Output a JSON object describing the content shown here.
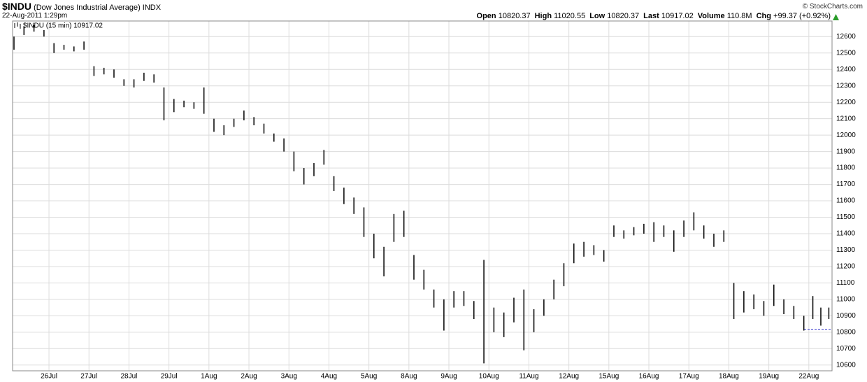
{
  "header": {
    "symbol": "$INDU",
    "name": "(Dow Jones Industrial Average) INDX",
    "date": "22-Aug-2011 1:29pm",
    "stats": [
      {
        "label": "Open",
        "value": "10820.37"
      },
      {
        "label": "High",
        "value": "11020.55"
      },
      {
        "label": "Low",
        "value": "10820.37"
      },
      {
        "label": "Last",
        "value": "10917.02"
      },
      {
        "label": "Volume",
        "value": "110.8M"
      },
      {
        "label": "Chg",
        "value": "+99.37 (+0.92%)"
      }
    ],
    "copyright": "© StockCharts.com"
  },
  "chart_data": {
    "type": "ohlc",
    "grid": true,
    "xlim": [
      0.09,
      20.58
    ],
    "ylim": [
      10565,
      12695
    ],
    "xticks": [
      {
        "value": 1,
        "label": "26Jul"
      },
      {
        "value": 2,
        "label": "27Jul"
      },
      {
        "value": 3,
        "label": "28Jul"
      },
      {
        "value": 4,
        "label": "29Jul"
      },
      {
        "value": 5,
        "label": "1Aug"
      },
      {
        "value": 6,
        "label": "2Aug"
      },
      {
        "value": 7,
        "label": "3Aug"
      },
      {
        "value": 8,
        "label": "4Aug"
      },
      {
        "value": 9,
        "label": "5Aug"
      },
      {
        "value": 10,
        "label": "8Aug"
      },
      {
        "value": 11,
        "label": "9Aug"
      },
      {
        "value": 12,
        "label": "10Aug"
      },
      {
        "value": 13,
        "label": "11Aug"
      },
      {
        "value": 14,
        "label": "12Aug"
      },
      {
        "value": 15,
        "label": "15Aug"
      },
      {
        "value": 16,
        "label": "16Aug"
      },
      {
        "value": 17,
        "label": "17Aug"
      },
      {
        "value": 18,
        "label": "18Aug"
      },
      {
        "value": 19,
        "label": "19Aug"
      },
      {
        "value": 20,
        "label": "22Aug"
      }
    ],
    "yticks": [
      10600,
      10700,
      10800,
      10900,
      11000,
      11100,
      11200,
      11300,
      11400,
      11500,
      11600,
      11700,
      11800,
      11900,
      12000,
      12100,
      12200,
      12300,
      12400,
      12500,
      12600
    ],
    "reference_line": {
      "value": 10818,
      "color": "#3333cc"
    },
    "series": [
      {
        "name": "$INDU (15 min) 10917.02",
        "color": "#000000",
        "x": [
          0.125,
          0.375,
          0.625,
          0.875,
          1.125,
          1.375,
          1.625,
          1.875,
          2.125,
          2.375,
          2.625,
          2.875,
          3.125,
          3.375,
          3.625,
          3.875,
          4.125,
          4.375,
          4.625,
          4.875,
          5.125,
          5.375,
          5.625,
          5.875,
          6.125,
          6.375,
          6.625,
          6.875,
          7.125,
          7.375,
          7.625,
          7.875,
          8.125,
          8.375,
          8.625,
          8.875,
          9.125,
          9.375,
          9.625,
          9.875,
          10.125,
          10.375,
          10.625,
          10.875,
          11.125,
          11.375,
          11.625,
          11.875,
          12.125,
          12.375,
          12.625,
          12.875,
          13.125,
          13.375,
          13.625,
          13.875,
          14.125,
          14.375,
          14.625,
          14.875,
          15.125,
          15.375,
          15.625,
          15.875,
          16.125,
          16.375,
          16.625,
          16.875,
          17.125,
          17.375,
          17.625,
          17.875,
          18.125,
          18.375,
          18.625,
          18.875,
          19.125,
          19.375,
          19.625,
          19.875,
          20.1,
          20.3,
          20.5
        ],
        "high": [
          12600,
          12660,
          12670,
          12640,
          12560,
          12550,
          12540,
          12570,
          12420,
          12410,
          12400,
          12340,
          12340,
          12380,
          12370,
          12290,
          12220,
          12210,
          12200,
          12290,
          12100,
          12060,
          12100,
          12150,
          12110,
          12070,
          12010,
          11980,
          11900,
          11800,
          11830,
          11910,
          11750,
          11680,
          11620,
          11560,
          11400,
          11320,
          11520,
          11540,
          11270,
          11180,
          11060,
          11000,
          11050,
          11050,
          10990,
          11240,
          10950,
          10920,
          11010,
          11060,
          10940,
          11000,
          11120,
          11220,
          11340,
          11350,
          11330,
          11300,
          11450,
          11420,
          11440,
          11460,
          11470,
          11450,
          11420,
          11480,
          11530,
          11450,
          11400,
          11420,
          11100,
          11050,
          11030,
          10990,
          11090,
          11000,
          10960,
          10900,
          11020,
          10950,
          10950
        ],
        "low": [
          12520,
          12610,
          12630,
          12600,
          12500,
          12520,
          12510,
          12520,
          12360,
          12370,
          12350,
          12300,
          12290,
          12330,
          12320,
          12090,
          12140,
          12170,
          12160,
          12130,
          12020,
          12000,
          12050,
          12090,
          12060,
          12010,
          11960,
          11900,
          11780,
          11700,
          11750,
          11820,
          11660,
          11580,
          11520,
          11380,
          11250,
          11140,
          11350,
          11380,
          11120,
          11060,
          10950,
          10810,
          10950,
          10960,
          10880,
          10610,
          10800,
          10770,
          10860,
          10690,
          10800,
          10900,
          11000,
          11080,
          11220,
          11260,
          11270,
          11230,
          11380,
          11370,
          11390,
          11400,
          11350,
          11380,
          11290,
          11380,
          11420,
          11370,
          11320,
          11350,
          10880,
          10920,
          10940,
          10900,
          10960,
          10910,
          10880,
          10810,
          10880,
          10840,
          10880
        ]
      }
    ]
  }
}
